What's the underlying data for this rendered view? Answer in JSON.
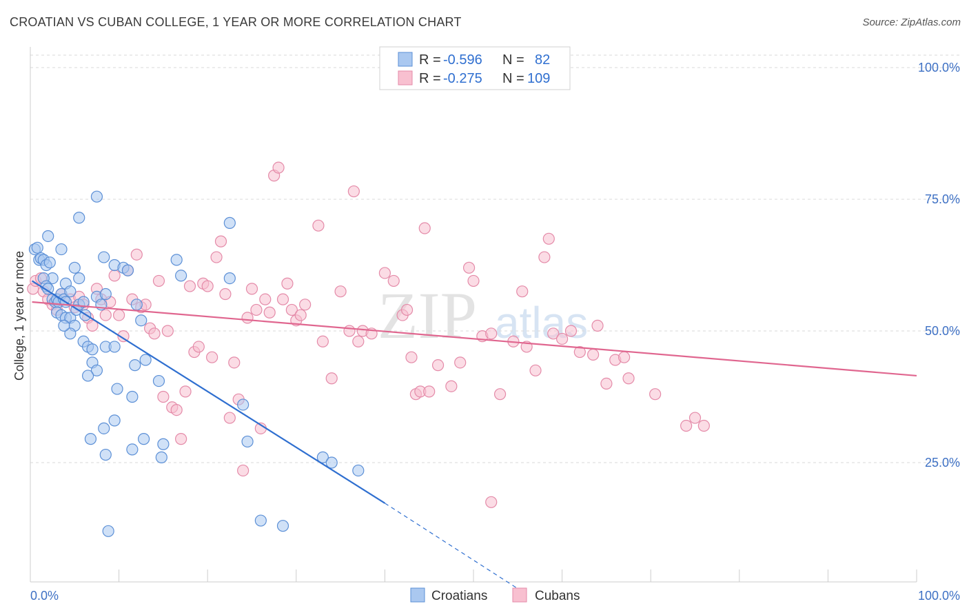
{
  "title": "CROATIAN VS CUBAN COLLEGE, 1 YEAR OR MORE CORRELATION CHART",
  "source": "Source: ZipAtlas.com",
  "watermark": {
    "zip": "ZIP",
    "atlas": "atlas"
  },
  "colors": {
    "croatians_fill": "#aac8f0",
    "croatians_stroke": "#5b8fd6",
    "croatians_line": "#2f6fd0",
    "cubans_fill": "#f8c0d0",
    "cubans_stroke": "#e48aa8",
    "cubans_line": "#e0668f",
    "grid": "#d8d8d8",
    "axis_text": "#3d70c4"
  },
  "legend": {
    "rows": [
      {
        "r_label": "R =",
        "r_value": "-0.596",
        "n_label": "N =",
        "n_value": "82"
      },
      {
        "r_label": "R =",
        "r_value": "-0.275",
        "n_label": "N =",
        "n_value": "109"
      }
    ]
  },
  "chart_data": {
    "type": "scatter",
    "xlabel": "",
    "ylabel": "College, 1 year or more",
    "x_ticks": [
      "0.0%",
      "100.0%"
    ],
    "y_ticks": [
      "25.0%",
      "50.0%",
      "75.0%",
      "100.0%"
    ],
    "xlim": [
      0,
      100
    ],
    "ylim": [
      0,
      100
    ],
    "grid": true,
    "legend_position": "top-center",
    "series": [
      {
        "name": "Croatians",
        "trend": {
          "x0": 0.2,
          "y0": 59.5,
          "x1": 40,
          "y1": 17.3,
          "dash_to_x": 56,
          "dash_to_y": 0
        },
        "points": [
          [
            0.5,
            65.5
          ],
          [
            0.8,
            65.8
          ],
          [
            1.0,
            63.5
          ],
          [
            1.2,
            63.8
          ],
          [
            1.5,
            63.5
          ],
          [
            1.8,
            62.5
          ],
          [
            2.0,
            68.0
          ],
          [
            2.2,
            63.0
          ],
          [
            2.5,
            60.0
          ],
          [
            1.5,
            60.0
          ],
          [
            1.8,
            58.5
          ],
          [
            2.0,
            58.0
          ],
          [
            2.5,
            56.0
          ],
          [
            2.8,
            55.5
          ],
          [
            3.0,
            56.0
          ],
          [
            3.2,
            55.5
          ],
          [
            3.5,
            57.0
          ],
          [
            3.8,
            56.0
          ],
          [
            4.0,
            55.5
          ],
          [
            3.0,
            53.5
          ],
          [
            3.5,
            53.0
          ],
          [
            4.0,
            52.5
          ],
          [
            4.5,
            52.5
          ],
          [
            5.0,
            51.0
          ],
          [
            5.2,
            54.0
          ],
          [
            5.5,
            55.0
          ],
          [
            6.0,
            55.5
          ],
          [
            6.2,
            53.0
          ],
          [
            3.5,
            65.5
          ],
          [
            4.0,
            59.0
          ],
          [
            4.5,
            57.5
          ],
          [
            5.0,
            62.0
          ],
          [
            5.5,
            60.0
          ],
          [
            7.5,
            56.5
          ],
          [
            8.0,
            55.0
          ],
          [
            8.5,
            57.0
          ],
          [
            8.3,
            64.0
          ],
          [
            9.5,
            62.5
          ],
          [
            10.5,
            62.0
          ],
          [
            11.0,
            61.5
          ],
          [
            6.0,
            48.0
          ],
          [
            6.5,
            47.0
          ],
          [
            7.0,
            46.5
          ],
          [
            8.5,
            47.0
          ],
          [
            9.5,
            47.0
          ],
          [
            4.5,
            49.5
          ],
          [
            3.8,
            51.0
          ],
          [
            7.0,
            44.0
          ],
          [
            7.5,
            42.5
          ],
          [
            6.5,
            41.5
          ],
          [
            9.8,
            39.0
          ],
          [
            11.5,
            37.5
          ],
          [
            12.0,
            55.0
          ],
          [
            12.5,
            52.0
          ],
          [
            13.0,
            44.5
          ],
          [
            11.8,
            43.5
          ],
          [
            14.5,
            40.5
          ],
          [
            7.5,
            75.5
          ],
          [
            5.5,
            71.5
          ],
          [
            16.5,
            63.5
          ],
          [
            17.0,
            60.5
          ],
          [
            22.5,
            70.5
          ],
          [
            22.5,
            60.0
          ],
          [
            6.8,
            29.5
          ],
          [
            8.3,
            31.5
          ],
          [
            9.5,
            33.0
          ],
          [
            11.5,
            27.5
          ],
          [
            12.8,
            29.5
          ],
          [
            14.8,
            26.0
          ],
          [
            15.0,
            28.5
          ],
          [
            8.5,
            26.5
          ],
          [
            24.0,
            36.0
          ],
          [
            24.5,
            29.0
          ],
          [
            33.0,
            26.0
          ],
          [
            34.0,
            25.0
          ],
          [
            37.0,
            23.5
          ],
          [
            8.8,
            12.0
          ],
          [
            26.0,
            14.0
          ],
          [
            28.5,
            13.0
          ]
        ]
      },
      {
        "name": "Cubans",
        "trend": {
          "x0": 0.2,
          "y0": 55.5,
          "x1": 100,
          "y1": 41.5
        },
        "points": [
          [
            0.3,
            58.0
          ],
          [
            0.6,
            59.5
          ],
          [
            1.2,
            60.0
          ],
          [
            1.5,
            57.5
          ],
          [
            2.0,
            56.0
          ],
          [
            2.5,
            55.0
          ],
          [
            3.0,
            54.0
          ],
          [
            3.5,
            57.0
          ],
          [
            4.5,
            56.0
          ],
          [
            5.0,
            54.5
          ],
          [
            5.5,
            56.5
          ],
          [
            6.0,
            55.0
          ],
          [
            6.5,
            52.5
          ],
          [
            7.0,
            51.0
          ],
          [
            7.5,
            58.0
          ],
          [
            8.0,
            56.0
          ],
          [
            8.5,
            53.0
          ],
          [
            9.0,
            55.5
          ],
          [
            9.5,
            60.5
          ],
          [
            10.0,
            53.0
          ],
          [
            10.5,
            49.0
          ],
          [
            11.0,
            61.5
          ],
          [
            11.5,
            56.0
          ],
          [
            12.0,
            64.5
          ],
          [
            12.5,
            54.5
          ],
          [
            13.0,
            55.0
          ],
          [
            13.5,
            50.5
          ],
          [
            14.0,
            49.5
          ],
          [
            14.5,
            59.5
          ],
          [
            15.0,
            37.5
          ],
          [
            15.5,
            50.0
          ],
          [
            16.0,
            35.5
          ],
          [
            16.5,
            35.0
          ],
          [
            17.0,
            29.5
          ],
          [
            17.5,
            38.5
          ],
          [
            18.0,
            58.5
          ],
          [
            18.5,
            46.0
          ],
          [
            19.0,
            47.0
          ],
          [
            19.5,
            59.0
          ],
          [
            20.0,
            58.5
          ],
          [
            20.5,
            45.0
          ],
          [
            21.0,
            64.0
          ],
          [
            21.5,
            67.0
          ],
          [
            22.0,
            57.0
          ],
          [
            22.5,
            33.5
          ],
          [
            23.0,
            44.0
          ],
          [
            23.5,
            37.0
          ],
          [
            24.0,
            23.5
          ],
          [
            24.5,
            52.5
          ],
          [
            25.0,
            58.0
          ],
          [
            25.5,
            54.0
          ],
          [
            26.0,
            31.5
          ],
          [
            26.5,
            56.0
          ],
          [
            27.0,
            53.5
          ],
          [
            27.5,
            79.5
          ],
          [
            28.0,
            81.0
          ],
          [
            28.5,
            56.0
          ],
          [
            29.0,
            59.0
          ],
          [
            29.5,
            54.0
          ],
          [
            30.0,
            52.0
          ],
          [
            30.5,
            53.0
          ],
          [
            31.0,
            55.0
          ],
          [
            32.5,
            70.0
          ],
          [
            33.0,
            48.0
          ],
          [
            34.0,
            41.0
          ],
          [
            35.0,
            57.5
          ],
          [
            36.0,
            50.0
          ],
          [
            36.5,
            76.5
          ],
          [
            37.0,
            48.0
          ],
          [
            37.5,
            50.0
          ],
          [
            38.5,
            49.5
          ],
          [
            40.0,
            61.0
          ],
          [
            41.0,
            59.5
          ],
          [
            42.0,
            53.0
          ],
          [
            42.5,
            54.0
          ],
          [
            43.0,
            45.0
          ],
          [
            43.5,
            38.0
          ],
          [
            44.0,
            38.5
          ],
          [
            44.5,
            69.5
          ],
          [
            45.0,
            38.5
          ],
          [
            46.0,
            43.5
          ],
          [
            47.5,
            39.5
          ],
          [
            48.5,
            44.0
          ],
          [
            49.5,
            62.0
          ],
          [
            50.0,
            59.5
          ],
          [
            51.0,
            49.0
          ],
          [
            52.0,
            49.5
          ],
          [
            53.0,
            38.0
          ],
          [
            54.5,
            48.0
          ],
          [
            55.5,
            57.5
          ],
          [
            56.0,
            47.0
          ],
          [
            57.0,
            42.5
          ],
          [
            58.0,
            64.0
          ],
          [
            58.5,
            67.5
          ],
          [
            59.0,
            49.5
          ],
          [
            60.0,
            48.5
          ],
          [
            61.0,
            50.0
          ],
          [
            62.0,
            46.0
          ],
          [
            63.5,
            45.5
          ],
          [
            64.0,
            51.0
          ],
          [
            65.0,
            40.0
          ],
          [
            66.0,
            44.5
          ],
          [
            67.0,
            45.0
          ],
          [
            67.5,
            41.0
          ],
          [
            70.5,
            38.0
          ],
          [
            74.0,
            32.0
          ],
          [
            75.0,
            33.5
          ],
          [
            76.0,
            32.0
          ],
          [
            52.0,
            17.5
          ]
        ]
      }
    ]
  }
}
